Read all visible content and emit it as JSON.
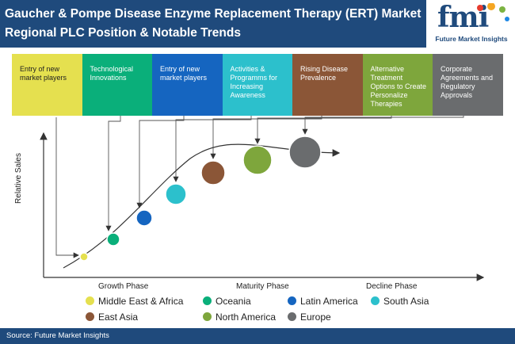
{
  "header": {
    "title": "Gaucher & Pompe Disease Enzyme Replacement Therapy (ERT) Market Regional PLC Position & Notable Trends"
  },
  "logo": {
    "mark": "fmi",
    "text": "Future Market Insights",
    "dot_colors": [
      "#e63b2e",
      "#f5a623",
      "#7cb342",
      "#1e88e5"
    ]
  },
  "trends": [
    {
      "label": "Entry of new market players",
      "color": "#e5e04f"
    },
    {
      "label": "Technological Innovations",
      "color": "#0aaf7a"
    },
    {
      "label": "Entry of new market players",
      "color": "#1565c0"
    },
    {
      "label": "Activities & Programms for Increasing Awareness",
      "color": "#2cc0cc"
    },
    {
      "label": "Rising Disease Prevalence",
      "color": "#8b5637"
    },
    {
      "label": "Alternative Treatment Options to Create Personalize Therapies",
      "color": "#7ea63c"
    },
    {
      "label": "Corporate Agreements and Regulatory Approvals",
      "color": "#6a6c6e"
    }
  ],
  "axis": {
    "ylabel": "Relative Sales"
  },
  "phases": [
    "Growth Phase",
    "Maturity Phase",
    "Decline Phase"
  ],
  "regions": [
    {
      "name": "Middle East & Africa",
      "color": "#e5e04f"
    },
    {
      "name": "Oceania",
      "color": "#0aaf7a"
    },
    {
      "name": "Latin America",
      "color": "#1565c0"
    },
    {
      "name": "South Asia",
      "color": "#2cc0cc"
    },
    {
      "name": "East Asia",
      "color": "#8b5637"
    },
    {
      "name": "North America",
      "color": "#7ea63c"
    },
    {
      "name": "Europe",
      "color": "#6a6c6e"
    }
  ],
  "footer": {
    "source": "Source: Future Market Insights"
  }
}
